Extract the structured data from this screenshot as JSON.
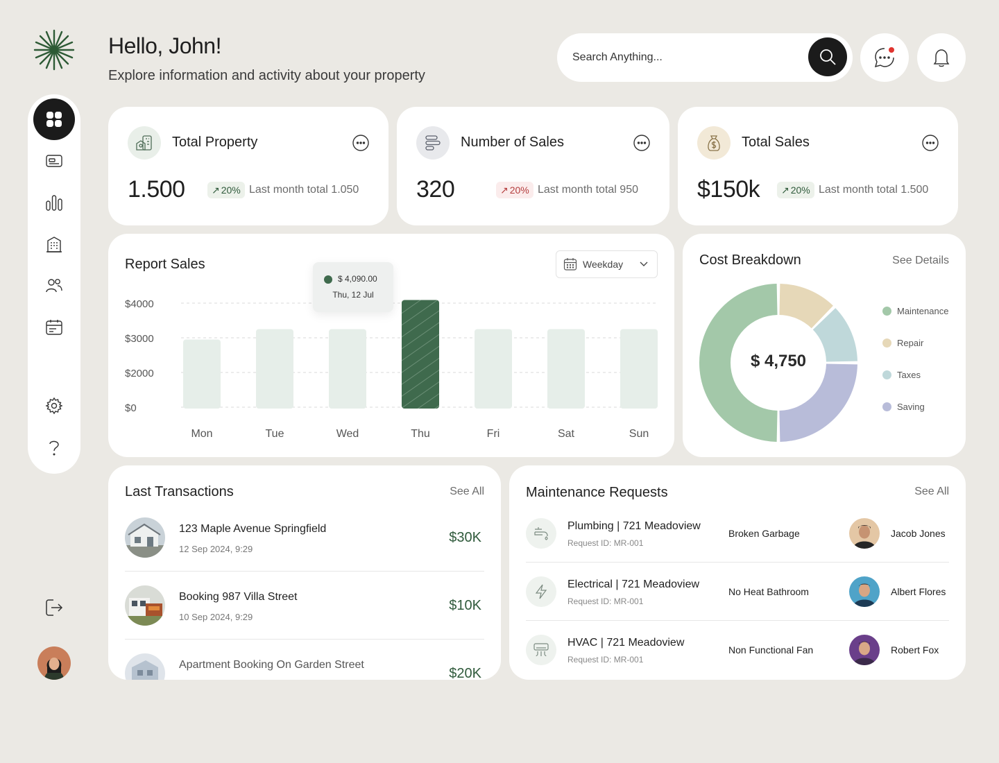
{
  "header": {
    "greeting": "Hello, John!",
    "subtitle": "Explore information and activity about your property",
    "search_placeholder": "Search Anything..."
  },
  "sidebar": {
    "items": [
      {
        "icon": "dashboard-icon",
        "active": true
      },
      {
        "icon": "wallet-card-icon"
      },
      {
        "icon": "bar-chart-icon"
      },
      {
        "icon": "building-icon"
      },
      {
        "icon": "users-icon"
      },
      {
        "icon": "calendar-icon"
      },
      {
        "icon": "gear-icon"
      },
      {
        "icon": "help-icon"
      }
    ]
  },
  "stats": [
    {
      "title": "Total Property",
      "value": "1.500",
      "change": "20%",
      "trend": "up",
      "note": "Last month total 1.050"
    },
    {
      "title": "Number of Sales",
      "value": "320",
      "change": "20%",
      "trend": "down",
      "note": "Last month total 950"
    },
    {
      "title": "Total Sales",
      "value": "$150k",
      "change": "20%",
      "trend": "up",
      "note": "Last month total 1.500"
    }
  ],
  "report": {
    "title": "Report Sales",
    "period": "Weekday",
    "tooltip_value": "$ 4,090.00",
    "tooltip_date": "Thu, 12 Jul"
  },
  "chart_data": {
    "type": "bar",
    "title": "Report Sales",
    "categories": [
      "Mon",
      "Tue",
      "Wed",
      "Thu",
      "Fri",
      "Sat",
      "Sun"
    ],
    "values": [
      2950,
      3250,
      3250,
      4090,
      3250,
      3250,
      3250
    ],
    "highlighted": "Thu",
    "yticks": [
      "$4000",
      "$3000",
      "$2000",
      "$0"
    ],
    "ytick_values": [
      4000,
      3000,
      2000,
      0
    ],
    "grid": true,
    "colors": {
      "bar": "#e6eee9",
      "highlight": "#3f6a4d"
    }
  },
  "cost_breakdown": {
    "title": "Cost Breakdown",
    "see_details": "See Details",
    "total": "$ 4,750",
    "segments": [
      {
        "name": "Maintenance",
        "value": 50,
        "color": "#a3c8a9"
      },
      {
        "name": "Repair",
        "value": 12.5,
        "color": "#e6d8b8"
      },
      {
        "name": "Taxes",
        "value": 12.5,
        "color": "#bfd8da"
      },
      {
        "name": "Saving",
        "value": 25,
        "color": "#b8bcd9"
      }
    ]
  },
  "transactions": {
    "title": "Last Transactions",
    "see_all": "See All",
    "items": [
      {
        "name": "123 Maple Avenue Springfield",
        "date": "12 Sep 2024, 9:29",
        "amount": "$30K"
      },
      {
        "name": "Booking 987 Villa Street",
        "date": "10 Sep 2024, 9:29",
        "amount": "$10K"
      },
      {
        "name": "Apartment Booking On Garden Street",
        "date": "",
        "amount": "$20K"
      }
    ]
  },
  "maintenance": {
    "title": "Maintenance Requests",
    "see_all": "See All",
    "items": [
      {
        "title": "Plumbing | 721 Meadoview",
        "request_id": "Request ID: MR-001",
        "issue": "Broken Garbage",
        "person": "Jacob Jones",
        "icon": "faucet-icon"
      },
      {
        "title": "Electrical | 721 Meadoview",
        "request_id": "Request ID: MR-001",
        "issue": "No Heat Bathroom",
        "person": "Albert Flores",
        "icon": "lightning-icon"
      },
      {
        "title": "HVAC | 721 Meadoview",
        "request_id": "Request ID: MR-001",
        "issue": "Non Functional Fan",
        "person": "Robert Fox",
        "icon": "air-conditioner-icon"
      }
    ]
  }
}
